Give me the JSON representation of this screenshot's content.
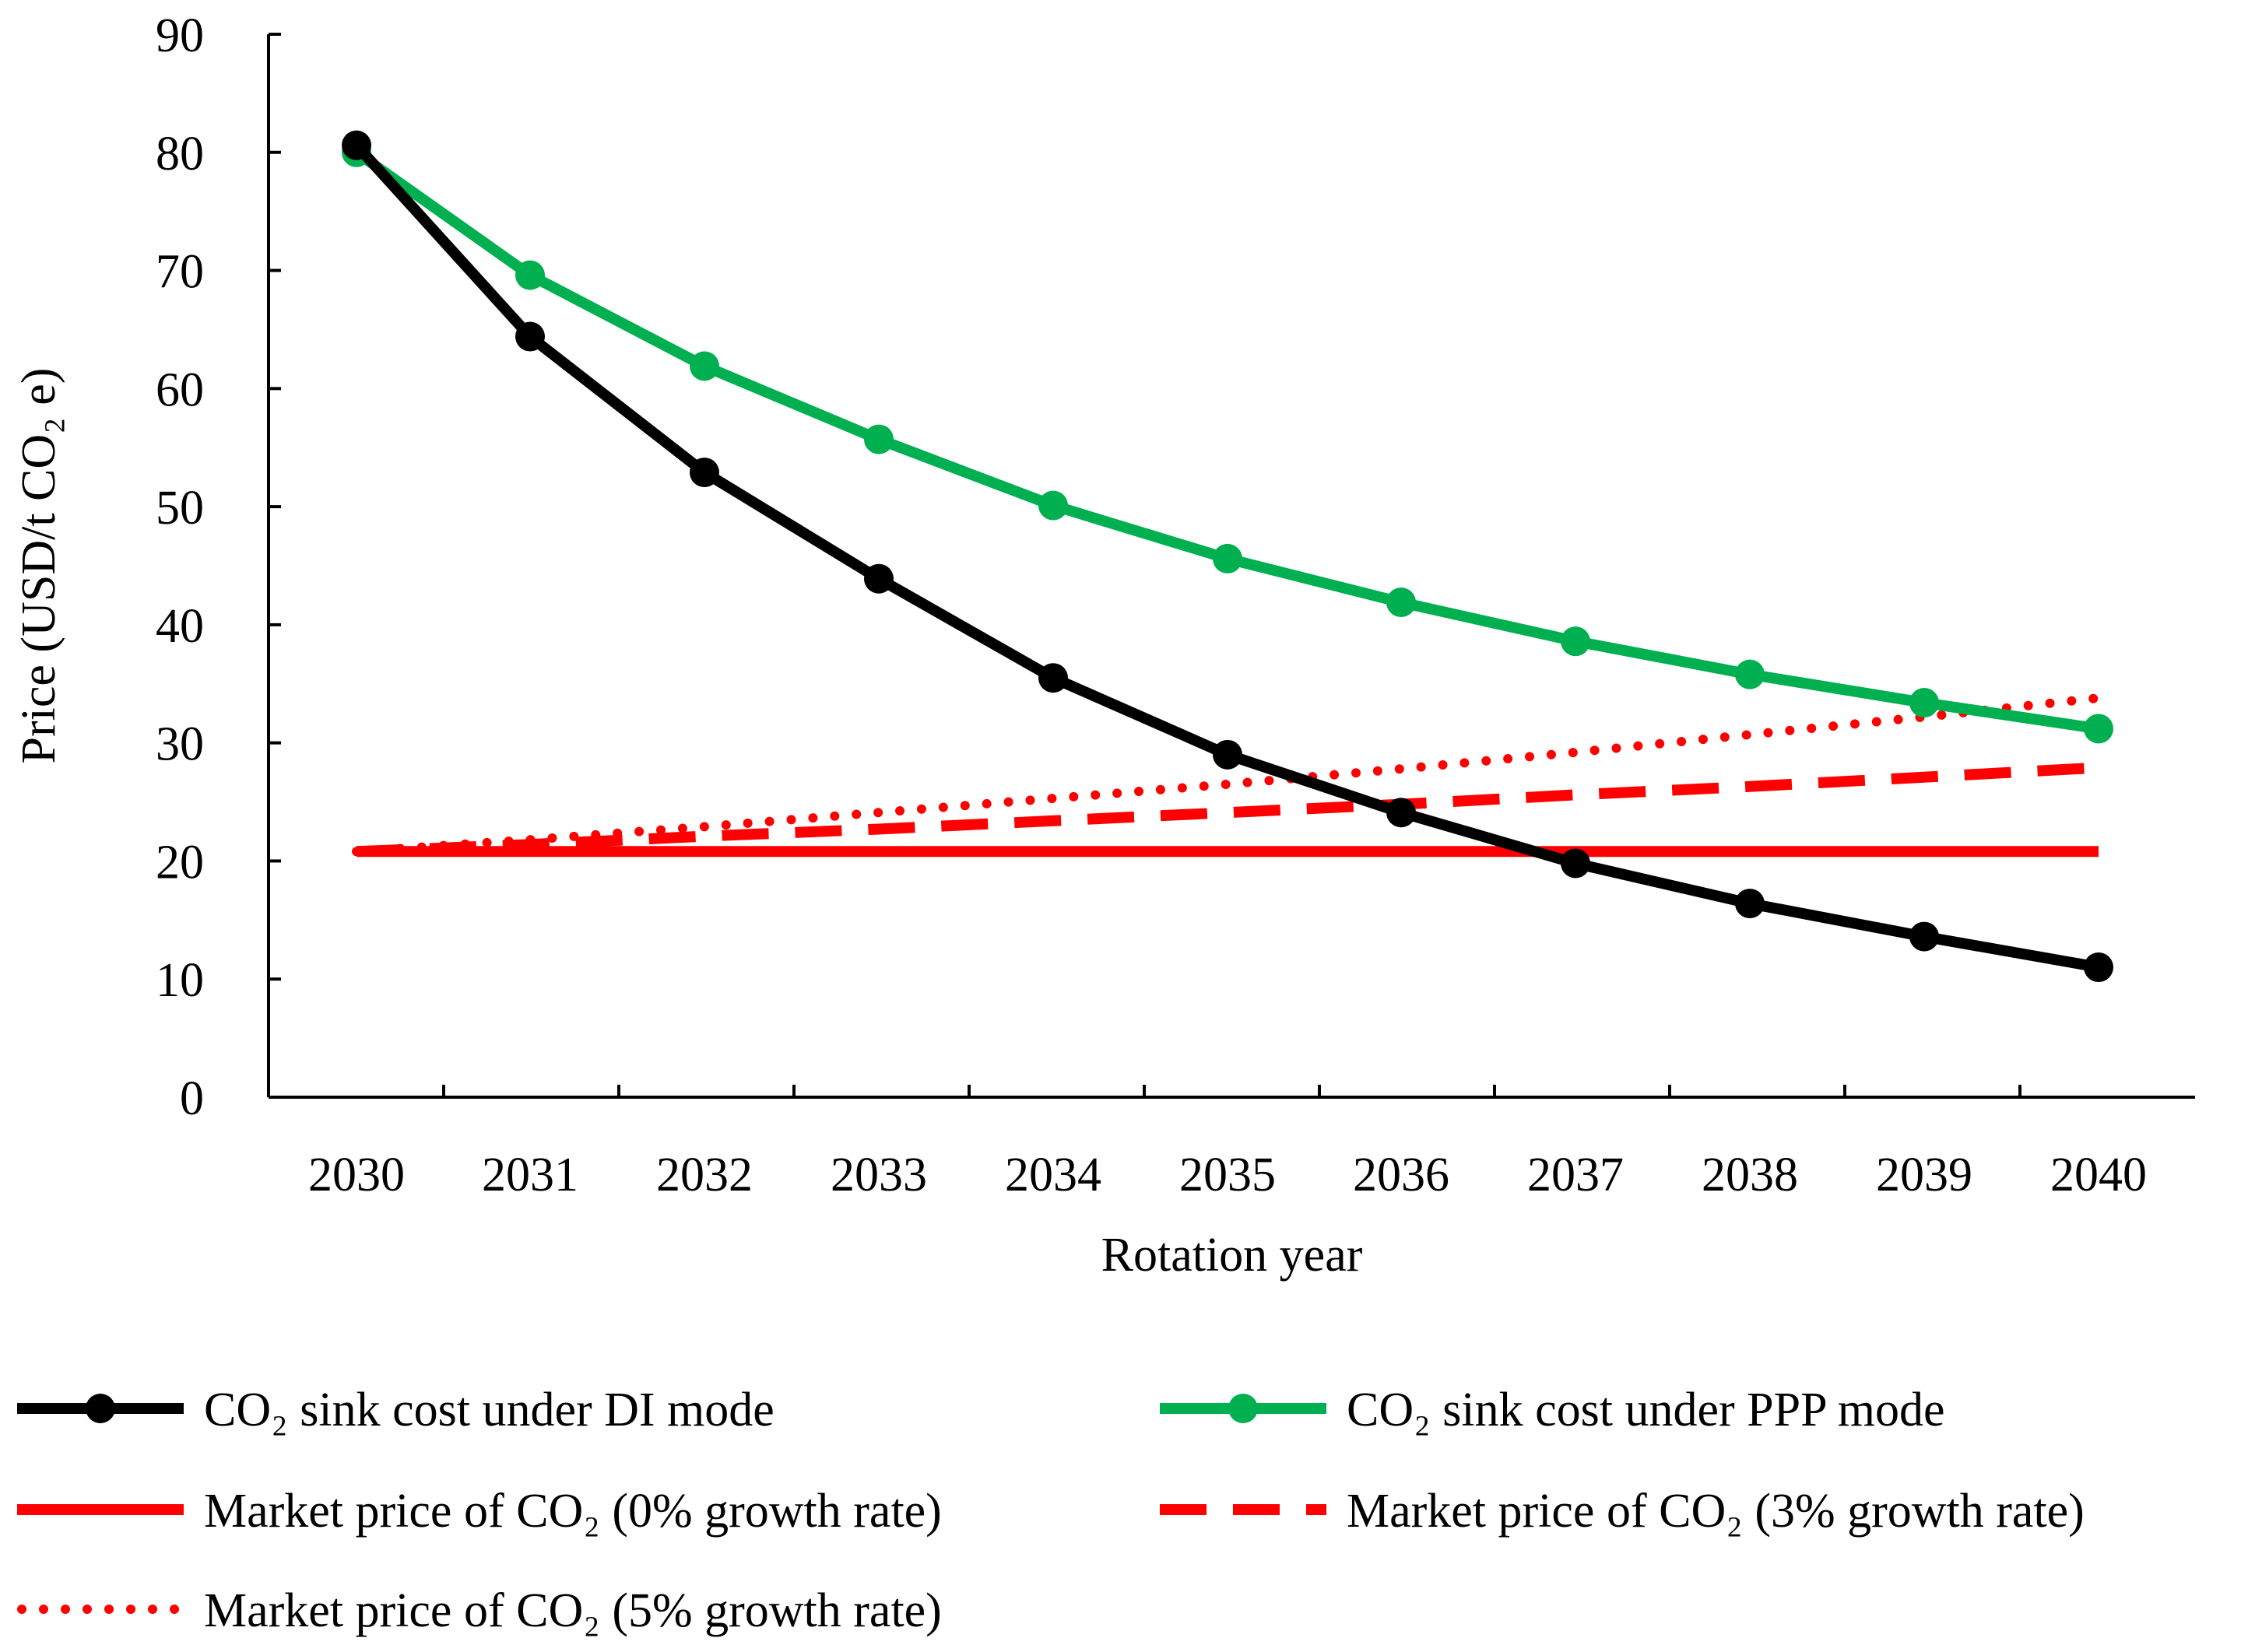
{
  "chart_data": {
    "type": "line",
    "title": "",
    "xlabel": "Rotation year",
    "ylabel": "Price (USD/t CO₂ e)",
    "categories": [
      "2030",
      "2031",
      "2032",
      "2033",
      "2034",
      "2035",
      "2036",
      "2037",
      "2038",
      "2039",
      "2040"
    ],
    "yticks": [
      "0",
      "10",
      "20",
      "30",
      "40",
      "50",
      "60",
      "70",
      "80",
      "90"
    ],
    "ylim": [
      0,
      90
    ],
    "grid": false,
    "legend_position": "bottom",
    "series": [
      {
        "name": "CO₂ sink cost under DI mode",
        "color": "#000000",
        "style": "solid-markers",
        "values": [
          80.6,
          64.4,
          52.9,
          43.9,
          35.5,
          29.0,
          24.1,
          19.8,
          16.4,
          13.6,
          11.0
        ]
      },
      {
        "name": "CO₂ sink cost under PPP mode",
        "color": "#00b050",
        "style": "solid-markers",
        "values": [
          80.0,
          69.6,
          61.9,
          55.7,
          50.1,
          45.6,
          41.9,
          38.6,
          35.8,
          33.4,
          31.2
        ]
      },
      {
        "name": "Market price of CO₂ (0% growth rate)",
        "color": "#ff0000",
        "style": "solid",
        "values": [
          20.8,
          20.8,
          20.8,
          20.8,
          20.8,
          20.8,
          20.8,
          20.8,
          20.8,
          20.8,
          20.8
        ]
      },
      {
        "name": "Market price of CO₂ (3% growth rate)",
        "color": "#ff0000",
        "style": "dashed",
        "values": [
          20.8,
          21.4,
          22.1,
          22.7,
          23.4,
          24.1,
          24.8,
          25.6,
          26.3,
          27.1,
          27.9
        ]
      },
      {
        "name": "Market price of CO₂ (5% growth rate)",
        "color": "#ff0000",
        "style": "dotted",
        "values": [
          20.8,
          21.8,
          22.9,
          24.1,
          25.3,
          26.5,
          27.8,
          29.2,
          30.7,
          32.2,
          33.8
        ]
      }
    ]
  }
}
